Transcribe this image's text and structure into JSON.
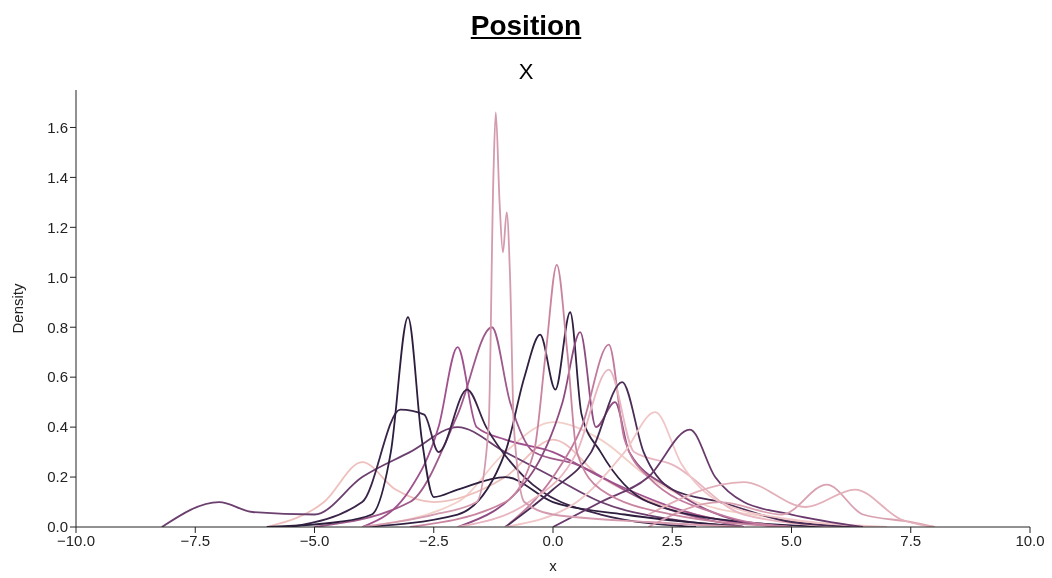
{
  "chart_data": {
    "type": "line",
    "title": "Position",
    "subtitle": "X",
    "xlabel": "x",
    "ylabel": "Density",
    "xlim": [
      -10,
      10
    ],
    "ylim": [
      0,
      1.75
    ],
    "xticks": [
      {
        "value": -10,
        "label": "−10.0"
      },
      {
        "value": -7.5,
        "label": "−7.5"
      },
      {
        "value": -5,
        "label": "−5.0"
      },
      {
        "value": -2.5,
        "label": "−2.5"
      },
      {
        "value": 0,
        "label": "0.0"
      },
      {
        "value": 2.5,
        "label": "2.5"
      },
      {
        "value": 5,
        "label": "5.0"
      },
      {
        "value": 7.5,
        "label": "7.5"
      },
      {
        "value": 10,
        "label": "10.0"
      }
    ],
    "yticks": [
      {
        "value": 0,
        "label": "0.0"
      },
      {
        "value": 0.2,
        "label": "0.2"
      },
      {
        "value": 0.4,
        "label": "0.4"
      },
      {
        "value": 0.6,
        "label": "0.6"
      },
      {
        "value": 0.8,
        "label": "0.8"
      },
      {
        "value": 1,
        "label": "1.0"
      },
      {
        "value": 1.2,
        "label": "1.2"
      },
      {
        "value": 1.4,
        "label": "1.4"
      },
      {
        "value": 1.6,
        "label": "1.6"
      }
    ],
    "grid": false,
    "legend": false,
    "marker": "none",
    "line_style": "solid",
    "series": [
      {
        "color": "#f2d0c8",
        "x": [
          -4,
          -2,
          -1,
          0,
          1,
          2,
          3,
          4.5,
          6
        ],
        "values": [
          0,
          0.1,
          0.3,
          0.42,
          0.35,
          0.2,
          0.1,
          0.04,
          0
        ]
      },
      {
        "color": "#eec0bd",
        "x": [
          -6,
          -4.8,
          -4,
          -3.3,
          -2.5,
          -1,
          0,
          1,
          3,
          5
        ],
        "values": [
          0,
          0.1,
          0.26,
          0.15,
          0.1,
          0.2,
          0.35,
          0.2,
          0.05,
          0
        ]
      },
      {
        "color": "#6b3f6e",
        "x": [
          -8.2,
          -7,
          -6.3,
          -5,
          -4,
          -3,
          -2,
          -1,
          0,
          1,
          2.5,
          4
        ],
        "values": [
          0,
          0.1,
          0.06,
          0.05,
          0.2,
          0.3,
          0.4,
          0.3,
          0.2,
          0.1,
          0.03,
          0
        ]
      },
      {
        "color": "#9e5a8a",
        "x": [
          -5,
          -3,
          -2,
          -1.28,
          -0.9,
          -0.4,
          0.5,
          2,
          4
        ],
        "values": [
          0,
          0.1,
          0.45,
          0.8,
          0.5,
          0.3,
          0.25,
          0.1,
          0
        ]
      },
      {
        "color": "#a0508c",
        "x": [
          -4,
          -3,
          -2.4,
          -2,
          -1.6,
          -1,
          0,
          1,
          3,
          5
        ],
        "values": [
          0,
          0.15,
          0.4,
          0.72,
          0.4,
          0.35,
          0.3,
          0.2,
          0.05,
          0
        ]
      },
      {
        "color": "#3a2448",
        "x": [
          -5.5,
          -4,
          -3.2,
          -2.7,
          -2.4,
          -1.8,
          -1.4,
          -0.6,
          1,
          3
        ],
        "values": [
          0,
          0.1,
          0.47,
          0.45,
          0.3,
          0.55,
          0.4,
          0.2,
          0.05,
          0
        ]
      },
      {
        "color": "#2d1e3e",
        "x": [
          -6,
          -4.5,
          -3.8,
          -3.4,
          -3.04,
          -2.75,
          -2.5,
          -2,
          -1,
          0,
          1.5,
          4
        ],
        "values": [
          0,
          0.02,
          0.05,
          0.3,
          0.84,
          0.35,
          0.12,
          0.15,
          0.2,
          0.1,
          0.05,
          0
        ]
      },
      {
        "color": "#2f1f40",
        "x": [
          -4,
          -2,
          -1,
          -0.6,
          -0.27,
          0.05,
          0.36,
          0.6,
          1,
          2,
          4,
          6
        ],
        "values": [
          0,
          0.05,
          0.3,
          0.6,
          0.77,
          0.55,
          0.86,
          0.45,
          0.3,
          0.1,
          0.02,
          0
        ]
      },
      {
        "color": "#8e4b80",
        "x": [
          -2,
          -0.5,
          0.2,
          0.57,
          0.9,
          1.3,
          1.6,
          2.5,
          4,
          5
        ],
        "values": [
          0,
          0.2,
          0.5,
          0.78,
          0.4,
          0.5,
          0.3,
          0.15,
          0.02,
          0
        ]
      },
      {
        "color": "#c27a9c",
        "x": [
          -1,
          0,
          0.6,
          1.17,
          1.5,
          2,
          3.5,
          5
        ],
        "values": [
          0,
          0.2,
          0.4,
          0.73,
          0.35,
          0.2,
          0.05,
          0
        ]
      },
      {
        "color": "#e8b5c0",
        "x": [
          -2,
          -0.5,
          0.5,
          1.17,
          1.7,
          2.5,
          4,
          6
        ],
        "values": [
          0,
          0.1,
          0.3,
          0.63,
          0.3,
          0.25,
          0.05,
          0
        ]
      },
      {
        "color": "#4a2c55",
        "x": [
          -1,
          0,
          0.8,
          1.45,
          1.9,
          2.5,
          3.5,
          5,
          6.5
        ],
        "values": [
          0,
          0.15,
          0.3,
          0.58,
          0.3,
          0.15,
          0.1,
          0.02,
          0
        ]
      },
      {
        "color": "#f0c6c8",
        "x": [
          -1,
          0.5,
          1.5,
          2.14,
          2.7,
          3.5,
          5,
          7
        ],
        "values": [
          0,
          0.1,
          0.3,
          0.46,
          0.25,
          0.1,
          0.03,
          0
        ]
      },
      {
        "color": "#6a3a6d",
        "x": [
          0,
          1,
          2,
          2.87,
          3.4,
          4,
          5,
          6.5
        ],
        "values": [
          0,
          0.1,
          0.2,
          0.39,
          0.2,
          0.1,
          0.05,
          0
        ]
      },
      {
        "color": "#d9a0b0",
        "x": [
          2,
          3.5,
          4.8,
          5.74,
          6.5,
          7.5,
          8
        ],
        "values": [
          0,
          0.1,
          0.05,
          0.17,
          0.05,
          0.02,
          0
        ]
      },
      {
        "color": "#e3b0ba",
        "x": [
          2,
          4,
          5.3,
          6.33,
          7.3,
          8
        ],
        "values": [
          0.05,
          0.18,
          0.08,
          0.15,
          0.03,
          0
        ]
      },
      {
        "color": "#c9849f",
        "x": [
          -3,
          -1,
          -0.4,
          -0.15,
          0.08,
          0.3,
          0.5,
          1,
          2.5,
          5
        ],
        "values": [
          0,
          0.1,
          0.3,
          0.7,
          1.05,
          0.7,
          0.3,
          0.15,
          0.05,
          0
        ]
      },
      {
        "color": "#d49aae",
        "x": [
          -4,
          -2.5,
          -1.6,
          -1.35,
          -1.25,
          -1.2,
          -1.12,
          -1.05,
          -0.97,
          -0.9,
          -0.82,
          -0.6,
          0,
          2,
          4
        ],
        "values": [
          0,
          0.05,
          0.1,
          0.4,
          1.4,
          1.66,
          1.3,
          1.1,
          1.26,
          1,
          0.4,
          0.1,
          0.05,
          0.02,
          0
        ]
      }
    ]
  }
}
